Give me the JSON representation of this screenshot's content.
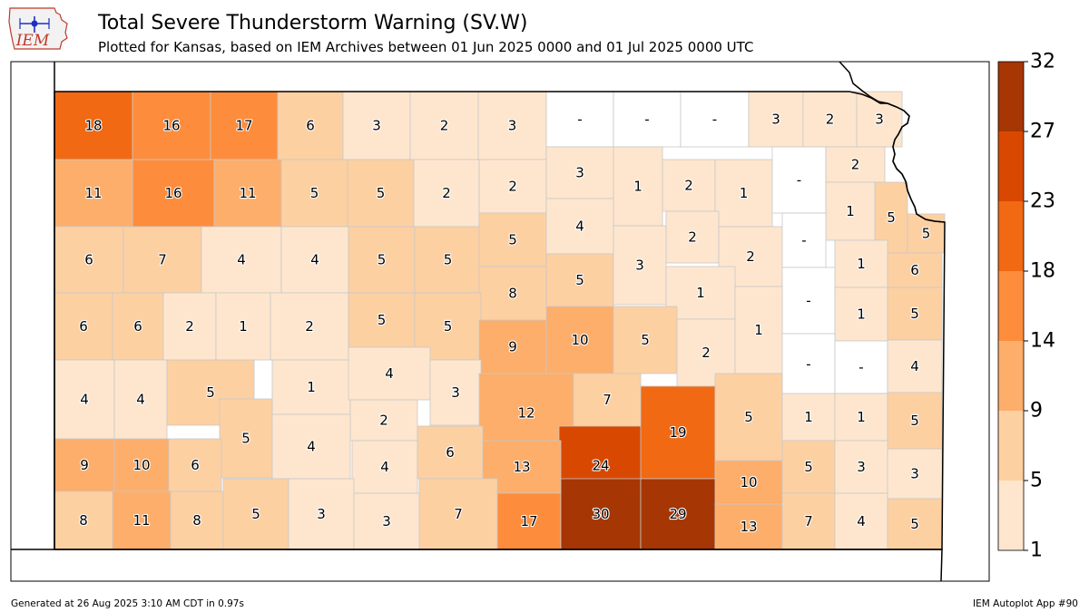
{
  "header": {
    "title": "Total Severe Thunderstorm Warning (SV.W)",
    "subtitle": "Plotted for Kansas, based on IEM Archives  between 01 Jun 2025 0000 and 01 Jul 2025 0000 UTC",
    "logo_text": "IEM"
  },
  "footer": {
    "generated": "Generated at 26 Aug 2025 3:10 AM CDT in 0.97s",
    "app": "IEM Autoplot App #90"
  },
  "colorbar": {
    "ticks": [
      "1",
      "5",
      "9",
      "14",
      "18",
      "23",
      "27",
      "32"
    ],
    "colors": [
      "#fee6ce",
      "#fdd0a2",
      "#fdae6b",
      "#fd8d3c",
      "#f16913",
      "#d94801",
      "#a63603"
    ]
  },
  "map_data": {
    "state": "Kansas",
    "no_data_label": "-",
    "counties": [
      {
        "v": 18
      },
      {
        "v": 16
      },
      {
        "v": 17
      },
      {
        "v": 6
      },
      {
        "v": 3
      },
      {
        "v": 2
      },
      {
        "v": 3
      },
      {
        "v": null
      },
      {
        "v": null
      },
      {
        "v": null
      },
      {
        "v": 3
      },
      {
        "v": 2
      },
      {
        "v": 3
      },
      {
        "v": 11
      },
      {
        "v": 16
      },
      {
        "v": 11
      },
      {
        "v": 5
      },
      {
        "v": 5
      },
      {
        "v": 2
      },
      {
        "v": 2
      },
      {
        "v": 3
      },
      {
        "v": 1
      },
      {
        "v": 2
      },
      {
        "v": 1
      },
      {
        "v": null
      },
      {
        "v": 2
      },
      {
        "v": 1
      },
      {
        "v": 5
      },
      {
        "v": 5
      },
      {
        "v": 6
      },
      {
        "v": 7
      },
      {
        "v": 4
      },
      {
        "v": 4
      },
      {
        "v": 5
      },
      {
        "v": 5
      },
      {
        "v": 5
      },
      {
        "v": 4
      },
      {
        "v": 2
      },
      {
        "v": 2
      },
      {
        "v": null
      },
      {
        "v": 1
      },
      {
        "v": 6
      },
      {
        "v": 8
      },
      {
        "v": 5
      },
      {
        "v": 3
      },
      {
        "v": 1
      },
      {
        "v": null
      },
      {
        "v": 1
      },
      {
        "v": 5
      },
      {
        "v": 6
      },
      {
        "v": 6
      },
      {
        "v": 2
      },
      {
        "v": 1
      },
      {
        "v": 2
      },
      {
        "v": 5
      },
      {
        "v": 5
      },
      {
        "v": 9
      },
      {
        "v": 10
      },
      {
        "v": 5
      },
      {
        "v": 2
      },
      {
        "v": 1
      },
      {
        "v": 4
      },
      {
        "v": 4
      },
      {
        "v": 5
      },
      {
        "v": 1
      },
      {
        "v": 4
      },
      {
        "v": 3
      },
      {
        "v": null
      },
      {
        "v": null
      },
      {
        "v": 4
      },
      {
        "v": 12
      },
      {
        "v": 7
      },
      {
        "v": 2
      },
      {
        "v": 5
      },
      {
        "v": 4
      },
      {
        "v": 24
      },
      {
        "v": 19
      },
      {
        "v": 5
      },
      {
        "v": 1
      },
      {
        "v": 1
      },
      {
        "v": 5
      },
      {
        "v": 9
      },
      {
        "v": 10
      },
      {
        "v": 6
      },
      {
        "v": 4
      },
      {
        "v": 6
      },
      {
        "v": 13
      },
      {
        "v": 10
      },
      {
        "v": 5
      },
      {
        "v": 3
      },
      {
        "v": 3
      },
      {
        "v": 8
      },
      {
        "v": 11
      },
      {
        "v": 8
      },
      {
        "v": 5
      },
      {
        "v": 3
      },
      {
        "v": 3
      },
      {
        "v": 7
      },
      {
        "v": 17
      },
      {
        "v": 30
      },
      {
        "v": 29
      },
      {
        "v": 13
      },
      {
        "v": 7
      },
      {
        "v": 4
      },
      {
        "v": 5
      }
    ]
  }
}
